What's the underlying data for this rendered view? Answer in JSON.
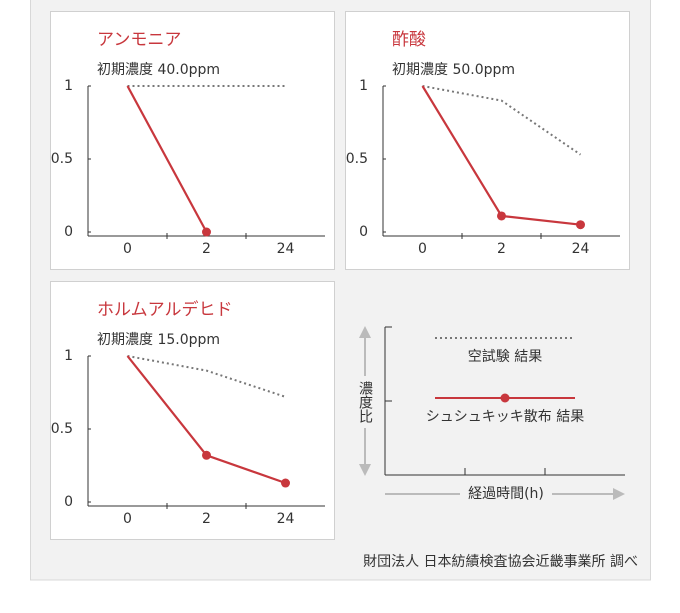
{
  "legend": {
    "series": [
      {
        "name": "空試験 結果",
        "color": "#777777",
        "dash": "dotted"
      },
      {
        "name": "シュシュキッキ散布 結果",
        "color": "#c8373d",
        "dash": "solid"
      }
    ],
    "y_label": "濃度比",
    "x_label": "経過時間(h)"
  },
  "chart_data": [
    {
      "type": "line",
      "title": "アンモニア",
      "subtitle": "初期濃度 40.0ppm",
      "categories": [
        "0",
        "2",
        "24"
      ],
      "ylim": [
        0,
        1
      ],
      "yticks": [
        0,
        0.5,
        1
      ],
      "series": [
        {
          "values": [
            1,
            1,
            1
          ]
        },
        {
          "values": [
            1,
            0,
            null
          ]
        }
      ]
    },
    {
      "type": "line",
      "title": "酢酸",
      "subtitle": "初期濃度 50.0ppm",
      "categories": [
        "0",
        "2",
        "24"
      ],
      "ylim": [
        0,
        1
      ],
      "yticks": [
        0,
        0.5,
        1
      ],
      "series": [
        {
          "values": [
            1,
            0.9,
            0.53
          ]
        },
        {
          "values": [
            1,
            0.11,
            0.05
          ]
        }
      ]
    },
    {
      "type": "line",
      "title": "ホルムアルデヒド",
      "subtitle": "初期濃度 15.0ppm",
      "categories": [
        "0",
        "2",
        "24"
      ],
      "ylim": [
        0,
        1
      ],
      "yticks": [
        0,
        0.5,
        1
      ],
      "series": [
        {
          "values": [
            1,
            0.9,
            0.72
          ]
        },
        {
          "values": [
            1,
            0.32,
            0.13
          ]
        }
      ]
    }
  ],
  "source": "財団法人 日本紡績検査協会近畿事業所 調べ"
}
